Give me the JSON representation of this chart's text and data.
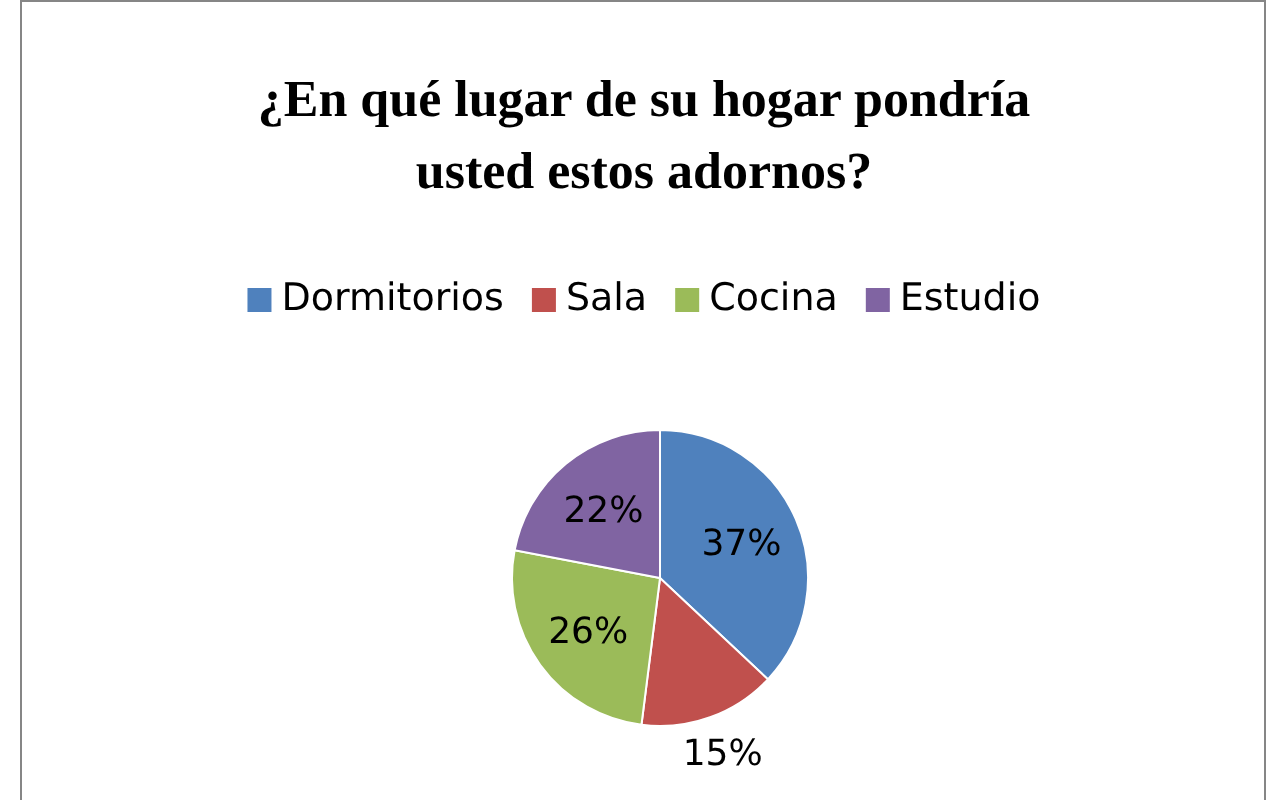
{
  "chart_data": {
    "type": "pie",
    "title": "¿En qué lugar de su hogar pondría usted estos adornos?",
    "categories": [
      "Dormitorios",
      "Sala",
      "Cocina",
      "Estudio"
    ],
    "values": [
      37,
      15,
      26,
      22
    ],
    "colors": [
      "#4f81bd",
      "#c0504d",
      "#9bbb59",
      "#8064a2"
    ],
    "value_labels": [
      "37%",
      "15%",
      "26%",
      "22%"
    ],
    "legend": "top"
  }
}
